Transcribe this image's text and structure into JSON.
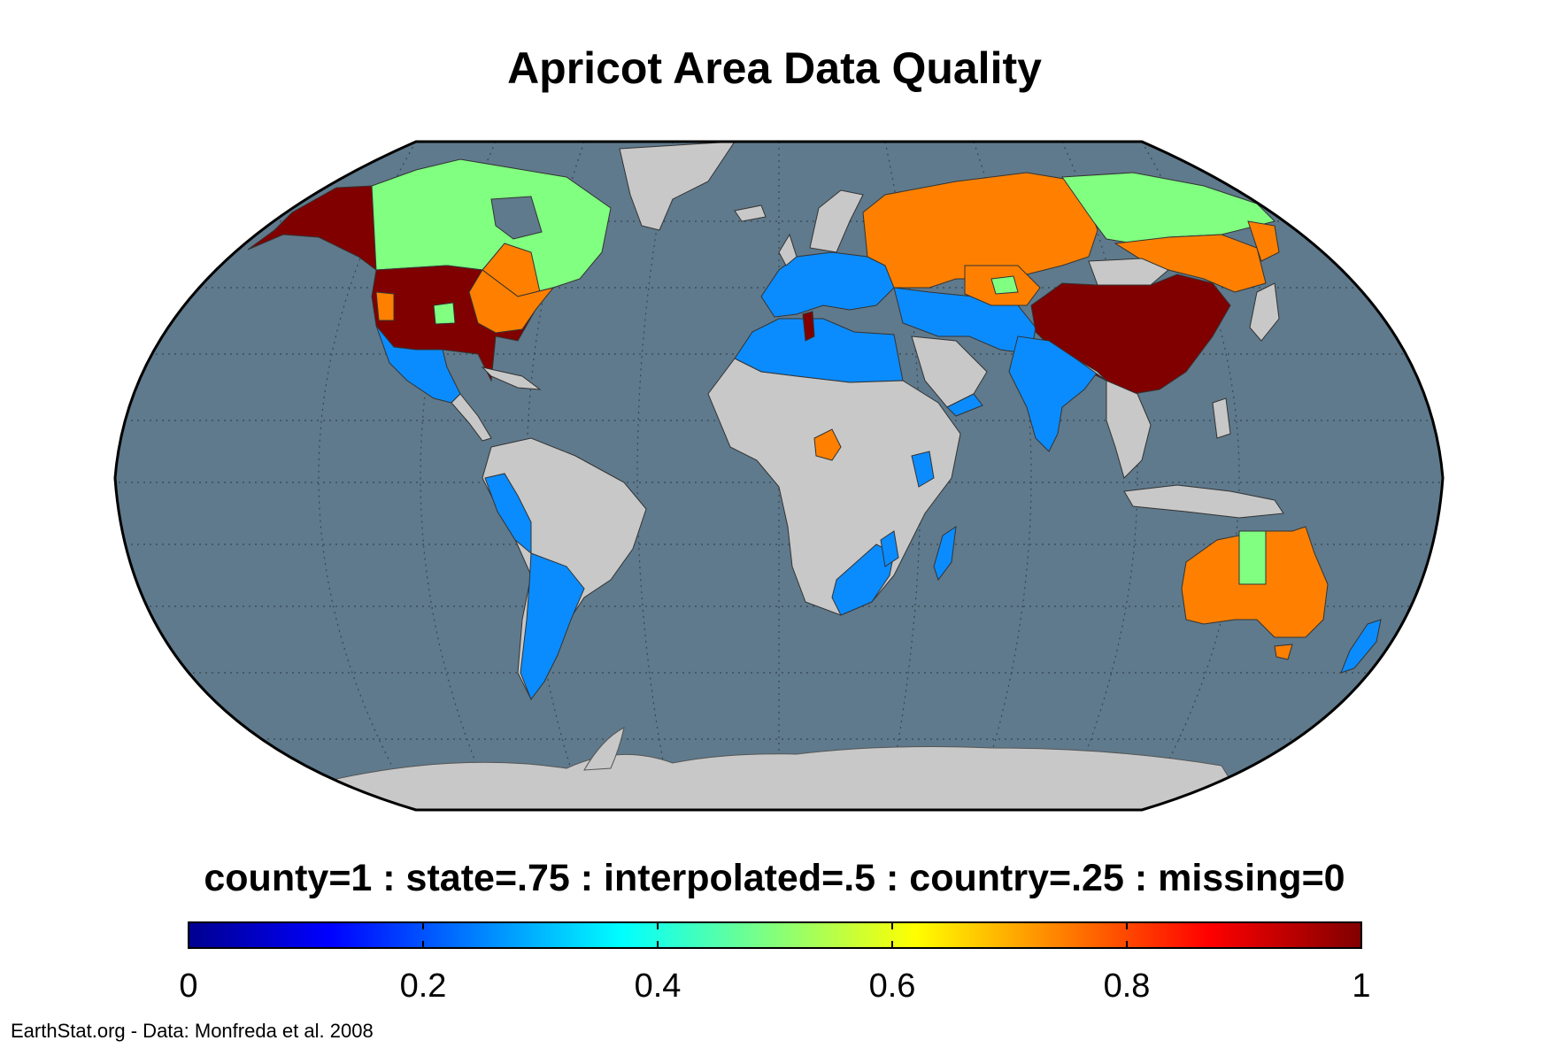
{
  "title": "Apricot Area Data Quality",
  "legend": {
    "description": "county=1 : state=.75 : interpolated=.5 : country=.25 : missing=0",
    "ticks": [
      "0",
      "0.2",
      "0.4",
      "0.6",
      "0.8",
      "1"
    ],
    "colormap": "jet",
    "range": [
      0,
      1
    ]
  },
  "credit": "EarthStat.org - Data: Monfreda et al. 2008",
  "colors": {
    "ocean": "#5f7a8c",
    "missing_land": "#c8c8c8",
    "county": "#800000",
    "state": "#ff8000",
    "interpolated": "#80ff80",
    "country": "#0a8cff"
  },
  "regions": [
    {
      "name": "Alaska",
      "value": 1
    },
    {
      "name": "Canada",
      "value": 0.5
    },
    {
      "name": "United States",
      "value": 1
    },
    {
      "name": "Mexico",
      "value": 0.25
    },
    {
      "name": "Greenland",
      "value": 0
    },
    {
      "name": "South America",
      "value": 0
    },
    {
      "name": "Peru",
      "value": 0.25
    },
    {
      "name": "Argentina",
      "value": 0.25
    },
    {
      "name": "Europe",
      "value": 0.25
    },
    {
      "name": "North Africa",
      "value": 0.25
    },
    {
      "name": "Tunisia",
      "value": 1
    },
    {
      "name": "Central Africa",
      "value": 0
    },
    {
      "name": "Cameroon",
      "value": 0.75
    },
    {
      "name": "Kenya",
      "value": 0.25
    },
    {
      "name": "Southern Africa",
      "value": 0.25
    },
    {
      "name": "Madagascar",
      "value": 0.25
    },
    {
      "name": "Russia",
      "value": 0.75
    },
    {
      "name": "Siberia",
      "value": 0.5
    },
    {
      "name": "Kazakhstan",
      "value": 0.75
    },
    {
      "name": "Middle East",
      "value": 0.25
    },
    {
      "name": "Saudi Arabia",
      "value": 0
    },
    {
      "name": "India",
      "value": 0.25
    },
    {
      "name": "China",
      "value": 1
    },
    {
      "name": "Southeast Asia",
      "value": 0
    },
    {
      "name": "Australia",
      "value": 0.75
    },
    {
      "name": "Northern Territory",
      "value": 0.5
    },
    {
      "name": "New Zealand",
      "value": 0.25
    },
    {
      "name": "Antarctica",
      "value": 0
    }
  ]
}
